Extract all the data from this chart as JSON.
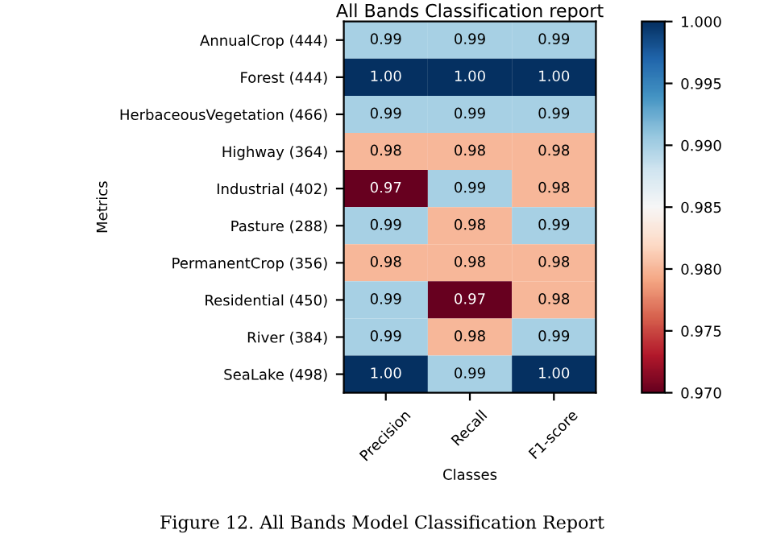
{
  "chart_data": {
    "type": "heatmap",
    "title": "All Bands Classification report",
    "xlabel": "Classes",
    "ylabel": "Metrics",
    "categories": [
      "Precision",
      "Recall",
      "F1-score"
    ],
    "y_categories": [
      "AnnualCrop (444)",
      "Forest (444)",
      "HerbaceousVegetation (466)",
      "Highway (364)",
      "Industrial (402)",
      "Pasture (288)",
      "PermanentCrop (356)",
      "Residential (450)",
      "River (384)",
      "SeaLake (498)"
    ],
    "cells": [
      [
        0.99,
        0.99,
        0.99
      ],
      [
        1.0,
        1.0,
        1.0
      ],
      [
        0.99,
        0.99,
        0.99
      ],
      [
        0.98,
        0.98,
        0.98
      ],
      [
        0.97,
        0.99,
        0.98
      ],
      [
        0.99,
        0.98,
        0.99
      ],
      [
        0.98,
        0.98,
        0.98
      ],
      [
        0.99,
        0.97,
        0.98
      ],
      [
        0.99,
        0.98,
        0.99
      ],
      [
        1.0,
        0.99,
        1.0
      ]
    ],
    "cell_labels": [
      [
        "0.99",
        "0.99",
        "0.99"
      ],
      [
        "1.00",
        "1.00",
        "1.00"
      ],
      [
        "0.99",
        "0.99",
        "0.99"
      ],
      [
        "0.98",
        "0.98",
        "0.98"
      ],
      [
        "0.97",
        "0.99",
        "0.98"
      ],
      [
        "0.99",
        "0.98",
        "0.99"
      ],
      [
        "0.98",
        "0.98",
        "0.98"
      ],
      [
        "0.99",
        "0.97",
        "0.98"
      ],
      [
        "0.99",
        "0.98",
        "0.99"
      ],
      [
        "1.00",
        "0.99",
        "1.00"
      ]
    ],
    "clim": [
      0.97,
      1.0
    ],
    "cticks": [
      {
        "value": 0.97,
        "label": "0.970"
      },
      {
        "value": 0.975,
        "label": "0.975"
      },
      {
        "value": 0.98,
        "label": "0.980"
      },
      {
        "value": 0.985,
        "label": "0.985"
      },
      {
        "value": 0.99,
        "label": "0.990"
      },
      {
        "value": 0.995,
        "label": "0.995"
      },
      {
        "value": 1.0,
        "label": "1.000"
      }
    ],
    "annotations": [
      "Figure 12. All Bands Model Classification Report"
    ]
  }
}
